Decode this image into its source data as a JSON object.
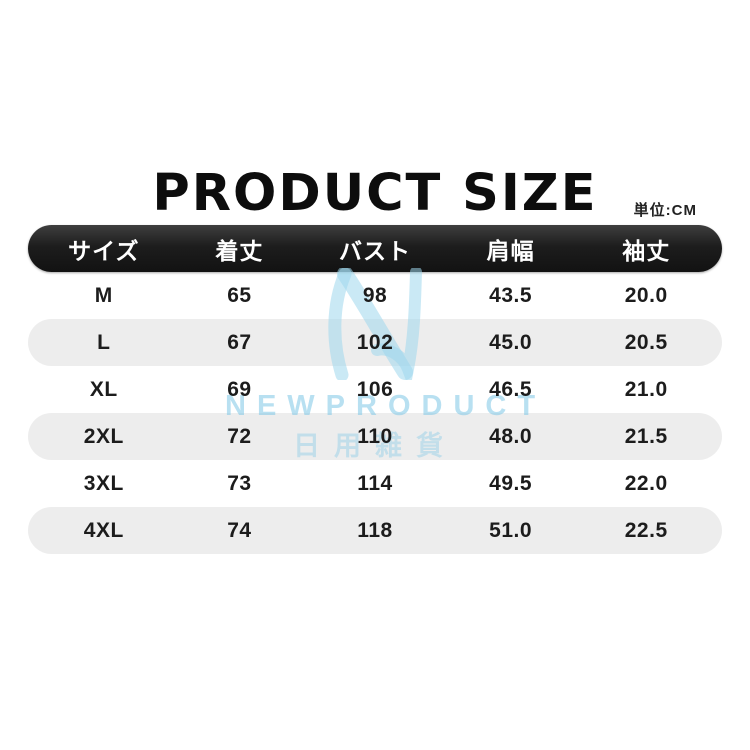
{
  "title": "PRODUCT SIZE",
  "unit_label": "単位:CM",
  "table": {
    "columns": [
      "サイズ",
      "着丈",
      "バスト",
      "肩幅",
      "袖丈"
    ],
    "rows": [
      {
        "size": "M",
        "values": [
          "65",
          "98",
          "43.5",
          "20.0"
        ]
      },
      {
        "size": "L",
        "values": [
          "67",
          "102",
          "45.0",
          "20.5"
        ]
      },
      {
        "size": "XL",
        "values": [
          "69",
          "106",
          "46.5",
          "21.0"
        ]
      },
      {
        "size": "2XL",
        "values": [
          "72",
          "110",
          "48.0",
          "21.5"
        ]
      },
      {
        "size": "3XL",
        "values": [
          "73",
          "114",
          "49.5",
          "22.0"
        ]
      },
      {
        "size": "4XL",
        "values": [
          "74",
          "118",
          "51.0",
          "22.5"
        ]
      }
    ]
  },
  "watermark": {
    "logo": "N-ribbon-logo",
    "brand": "NEWPRODUCT",
    "subtext": "日用雑貨"
  },
  "colors": {
    "header_bar": "#1d1d1d",
    "alt_row": "#ededed",
    "text": "#1c1c1c",
    "watermark_blue": "#9ed7ed"
  }
}
